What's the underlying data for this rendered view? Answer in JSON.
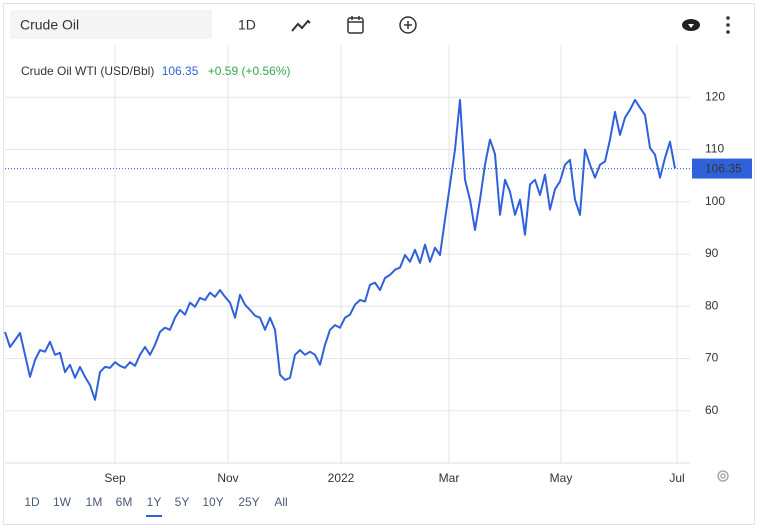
{
  "toolbar": {
    "search": "Crude Oil",
    "interval": "1D"
  },
  "chart_data": {
    "type": "line",
    "title": "Crude Oil WTI (USD/Bbl)",
    "change": "+0.59 (+0.56%)",
    "change_color": "#3aa64a",
    "series": [
      {
        "name": "Crude Oil WTI",
        "color": "#2f62d9",
        "values": [
          75.1,
          72.2,
          73.5,
          74.9,
          70.7,
          66.5,
          69.7,
          71.6,
          71.3,
          73.2,
          70.7,
          71.1,
          67.4,
          68.8,
          66.3,
          68.4,
          66.5,
          64.9,
          62.1,
          67.4,
          68.4,
          68.2,
          69.3,
          68.6,
          68.2,
          69.3,
          68.6,
          70.7,
          72.2,
          70.7,
          72.6,
          75.1,
          75.9,
          75.5,
          77.8,
          79.3,
          78.4,
          80.7,
          79.9,
          81.6,
          81.2,
          82.6,
          81.8,
          83.1,
          81.8,
          80.7,
          77.8,
          82.2,
          80.3,
          79.3,
          78.2,
          77.8,
          75.5,
          77.8,
          75.5,
          66.9,
          65.9,
          66.3,
          70.7,
          71.6,
          70.7,
          71.3,
          70.7,
          68.8,
          72.6,
          75.5,
          76.4,
          75.9,
          77.8,
          78.4,
          80.3,
          81.2,
          80.9,
          84.1,
          84.5,
          83.1,
          85.4,
          86.0,
          87.0,
          87.4,
          89.8,
          88.5,
          90.8,
          88.3,
          91.8,
          88.5,
          91.2,
          89.8,
          96.6,
          103.3,
          110.0,
          119.5,
          104.2,
          100.4,
          94.6,
          100.4,
          107.1,
          111.9,
          109.1,
          97.5,
          104.2,
          101.9,
          97.5,
          100.4,
          93.7,
          103.3,
          104.2,
          101.3,
          105.2,
          98.5,
          102.4,
          103.9,
          107.1,
          108.0,
          100.4,
          97.5,
          110.0,
          107.1,
          104.6,
          107.1,
          107.7,
          111.9,
          117.2,
          112.8,
          116.1,
          117.6,
          119.5,
          118.0,
          116.6,
          110.3,
          109.0,
          104.6,
          108.4,
          111.5,
          106.35
        ]
      }
    ],
    "xlim": [
      0,
      135
    ],
    "xticks": [
      {
        "value": 22,
        "label": "Sep"
      },
      {
        "value": 44.6,
        "label": "Nov"
      },
      {
        "value": 67.2,
        "label": "2022"
      },
      {
        "value": 88.8,
        "label": "Mar"
      },
      {
        "value": 111.2,
        "label": "May"
      },
      {
        "value": 134.4,
        "label": "Jul"
      }
    ],
    "ylim": [
      50,
      130
    ],
    "yticks": [
      60,
      70,
      80,
      90,
      100,
      110,
      120
    ],
    "grid": true
  },
  "ranges": [
    "1D",
    "1W",
    "1M",
    "6M",
    "1Y",
    "5Y",
    "10Y",
    "25Y",
    "All"
  ],
  "selected_range": "1Y"
}
